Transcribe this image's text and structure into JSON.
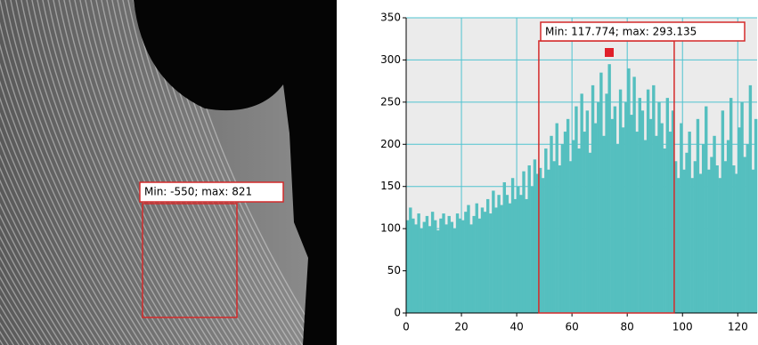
{
  "image": {
    "annotation": "Min: -550; max: 821"
  },
  "chart_data": {
    "type": "histogram",
    "bins": [
      0,
      1,
      2,
      3,
      4,
      5,
      6,
      7,
      8,
      9,
      10,
      11,
      12,
      13,
      14,
      15,
      16,
      17,
      18,
      19,
      20,
      21,
      22,
      23,
      24,
      25,
      26,
      27,
      28,
      29,
      30,
      31,
      32,
      33,
      34,
      35,
      36,
      37,
      38,
      39,
      40,
      41,
      42,
      43,
      44,
      45,
      46,
      47,
      48,
      49,
      50,
      51,
      52,
      53,
      54,
      55,
      56,
      57,
      58,
      59,
      60,
      61,
      62,
      63,
      64,
      65,
      66,
      67,
      68,
      69,
      70,
      71,
      72,
      73,
      74,
      75,
      76,
      77,
      78,
      79,
      80,
      81,
      82,
      83,
      84,
      85,
      86,
      87,
      88,
      89,
      90,
      91,
      92,
      93,
      94,
      95,
      96,
      97,
      98,
      99,
      100,
      101,
      102,
      103,
      104,
      105,
      106,
      107,
      108,
      109,
      110,
      111,
      112,
      113,
      114,
      115,
      116,
      117,
      118,
      119,
      120,
      121,
      122,
      123,
      124,
      125,
      126,
      127
    ],
    "values": [
      110,
      125,
      112,
      105,
      118,
      100,
      108,
      115,
      103,
      120,
      110,
      98,
      112,
      118,
      105,
      115,
      108,
      100,
      118,
      112,
      110,
      120,
      128,
      105,
      115,
      130,
      112,
      125,
      120,
      135,
      118,
      145,
      125,
      140,
      128,
      155,
      140,
      130,
      160,
      135,
      150,
      140,
      168,
      135,
      175,
      150,
      182,
      165,
      172,
      160,
      195,
      170,
      210,
      180,
      225,
      175,
      200,
      215,
      230,
      180,
      205,
      245,
      195,
      260,
      215,
      240,
      190,
      270,
      225,
      250,
      285,
      210,
      260,
      295,
      230,
      245,
      200,
      265,
      220,
      250,
      290,
      235,
      280,
      215,
      255,
      240,
      205,
      265,
      230,
      270,
      210,
      250,
      225,
      195,
      255,
      215,
      240,
      180,
      160,
      225,
      170,
      190,
      215,
      160,
      180,
      230,
      165,
      200,
      245,
      170,
      185,
      210,
      175,
      160,
      240,
      180,
      205,
      255,
      175,
      165,
      220,
      250,
      185,
      200,
      270,
      170,
      230
    ],
    "color": "#55bfbf",
    "xlim": [
      0,
      127
    ],
    "xticks": [
      0,
      20,
      40,
      60,
      80,
      100,
      120
    ],
    "ylim": [
      0,
      350
    ],
    "yticks": [
      0,
      50,
      100,
      150,
      200,
      250,
      300,
      350
    ],
    "grid": true,
    "selection": {
      "label": "Min: 117.774; max: 293.135",
      "x": [
        48,
        97
      ]
    }
  }
}
